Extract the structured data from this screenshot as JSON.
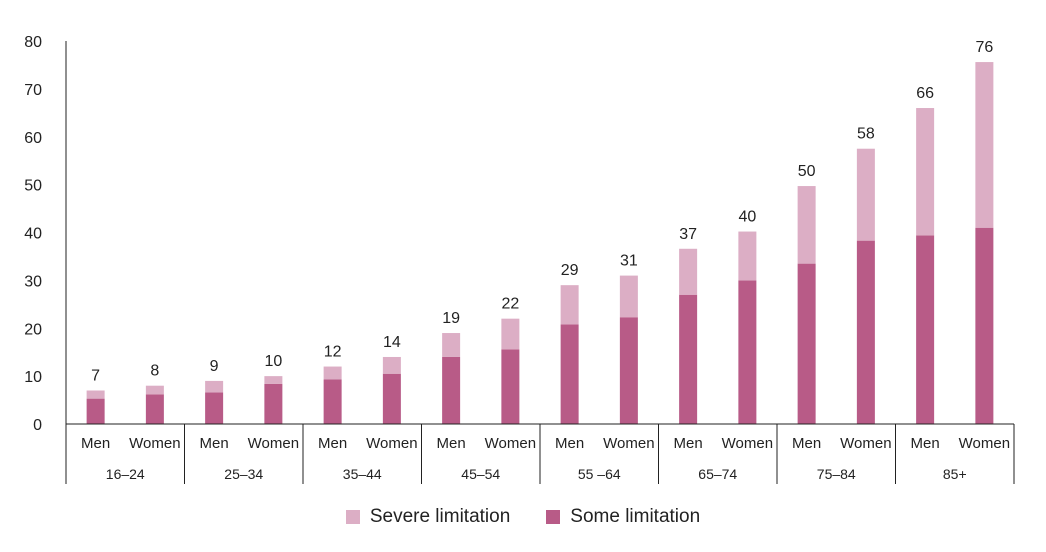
{
  "chart_data": {
    "type": "bar",
    "stacked": true,
    "groups": [
      "16–24",
      "25–34",
      "35–44",
      "45–54",
      "55 –64",
      "65–74",
      "75–84",
      "85+"
    ],
    "categories": [
      "Men",
      "Women",
      "Men",
      "Women",
      "Men",
      "Women",
      "Men",
      "Women",
      "Men",
      "Women",
      "Men",
      "Women",
      "Men",
      "Women",
      "Men",
      "Women"
    ],
    "series": [
      {
        "name": "Some limitation",
        "color": "#b85b87",
        "values": [
          5.3,
          6.2,
          6.6,
          8.4,
          9.3,
          10.5,
          14,
          15.6,
          20.8,
          22.3,
          27,
          30,
          33.5,
          38.3,
          39.4,
          41
        ]
      },
      {
        "name": "Severe limitation",
        "color": "#dcaec5",
        "values": [
          1.7,
          1.8,
          2.4,
          1.6,
          2.7,
          3.5,
          5,
          6.4,
          8.2,
          8.7,
          9.6,
          10.2,
          16.2,
          19.2,
          26.6,
          34.6
        ]
      }
    ],
    "totals": [
      7,
      8,
      9,
      10,
      12,
      14,
      19,
      22,
      29,
      31,
      37,
      40,
      50,
      58,
      66,
      76
    ],
    "yticks": [
      0,
      10,
      20,
      30,
      40,
      50,
      60,
      70,
      80
    ],
    "ylim": [
      0,
      80
    ],
    "legend": [
      "Severe limitation",
      "Some limitation"
    ],
    "legend_position": "bottom-center",
    "grid": false
  }
}
